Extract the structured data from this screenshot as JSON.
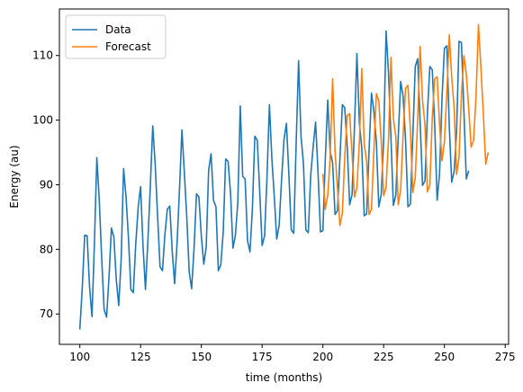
{
  "chart_data": {
    "type": "line",
    "xlabel": "time (months)",
    "ylabel": "Energy (au)",
    "xlim": [
      91.6,
      276.4
    ],
    "ylim": [
      65.3,
      117.2
    ],
    "xticks": [
      100,
      125,
      150,
      175,
      200,
      225,
      250,
      275
    ],
    "yticks": [
      70,
      80,
      90,
      100,
      110
    ],
    "legend_position": "top-left",
    "grid": false,
    "series": [
      {
        "name": "Data",
        "color": "#1f77b4",
        "start_x": 100,
        "values": [
          67.6,
          74.0,
          82.2,
          82.1,
          74.2,
          69.6,
          80.9,
          94.2,
          87.6,
          78.6,
          70.7,
          69.5,
          75.6,
          83.3,
          81.9,
          75.3,
          71.3,
          78.4,
          92.5,
          88.2,
          81.8,
          73.8,
          73.3,
          80.8,
          86.5,
          89.7,
          80.5,
          73.8,
          81.3,
          89.8,
          99.1,
          93.2,
          85.1,
          77.3,
          76.7,
          82.3,
          86.2,
          86.7,
          79.8,
          74.7,
          80.9,
          89.2,
          98.5,
          91.9,
          85.0,
          76.5,
          73.9,
          80.2,
          88.6,
          88.1,
          82.0,
          77.7,
          80.4,
          92.3,
          94.8,
          87.6,
          86.6,
          76.7,
          77.6,
          82.7,
          94.0,
          93.6,
          88.7,
          80.2,
          82.2,
          87.3,
          102.2,
          91.3,
          90.9,
          81.3,
          79.6,
          86.3,
          97.5,
          96.9,
          89.0,
          80.6,
          82.1,
          91.1,
          102.4,
          94.1,
          88.2,
          81.6,
          83.7,
          90.8,
          97.0,
          99.5,
          91.6,
          83.0,
          82.5,
          96.4,
          109.2,
          97.5,
          93.3,
          83.0,
          82.6,
          91.5,
          95.9,
          99.7,
          91.9,
          82.7,
          82.9,
          94.1,
          103.1,
          95.1,
          93.4,
          85.4,
          86.0,
          94.0,
          102.4,
          101.9,
          96.0,
          86.9,
          88.5,
          99.1,
          110.3,
          99.6,
          95.7,
          85.2,
          85.5,
          95.4,
          104.2,
          101.3,
          96.6,
          86.6,
          88.5,
          97.0,
          113.8,
          107.3,
          97.2,
          86.8,
          88.4,
          97.4,
          106.0,
          103.7,
          97.0,
          86.6,
          87.0,
          97.6,
          108.3,
          109.5,
          99.8,
          89.9,
          90.6,
          101.0,
          108.3,
          107.8,
          99.3,
          87.6,
          91.7,
          103.3,
          111.1,
          111.5,
          99.1,
          90.4,
          92.1,
          98.2,
          112.2,
          112.0,
          101.5,
          90.9,
          92.2
        ]
      },
      {
        "name": "Forecast",
        "color": "#ff7f0e",
        "start_x": 200,
        "values": [
          91.7,
          86.2,
          88.4,
          94.2,
          106.4,
          95.2,
          89.5,
          83.7,
          85.6,
          94.4,
          100.7,
          101.0,
          94.8,
          88.1,
          89.6,
          96.5,
          108.0,
          96.3,
          93.6,
          85.4,
          86.2,
          95.6,
          104.1,
          103.0,
          96.7,
          88.3,
          89.6,
          97.1,
          109.7,
          100.3,
          97.4,
          86.9,
          89.2,
          97.7,
          104.9,
          105.4,
          98.5,
          88.8,
          91.1,
          100.1,
          111.4,
          103.0,
          99.3,
          88.9,
          89.9,
          100.3,
          106.4,
          106.7,
          99.4,
          93.7,
          96.6,
          104.3,
          113.2,
          106.7,
          101.9,
          91.6,
          94.3,
          103.9,
          110.0,
          107.2,
          101.7,
          95.8,
          96.9,
          103.7,
          114.8,
          108.3,
          101.0,
          93.2,
          95.0
        ]
      }
    ]
  }
}
